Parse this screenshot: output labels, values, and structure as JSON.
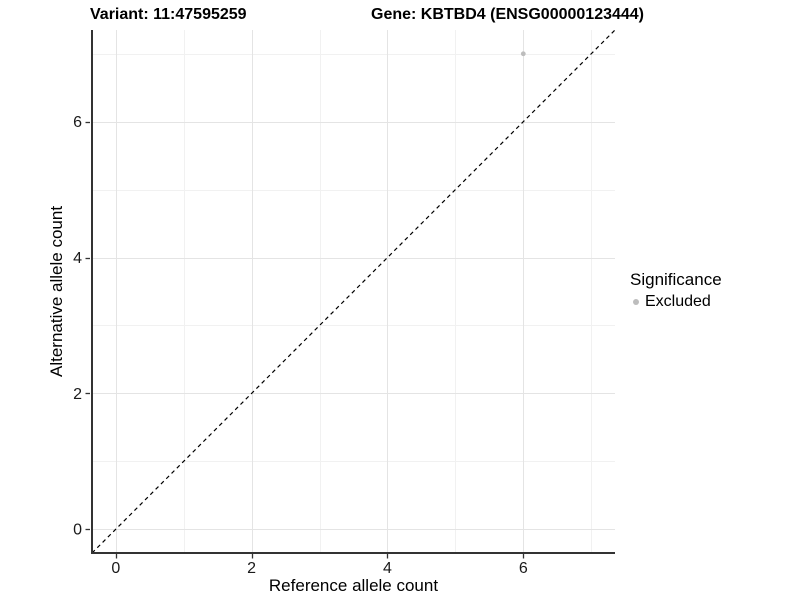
{
  "chart_data": {
    "type": "scatter",
    "title_left": "Variant: 11:47595259",
    "title_right": "Gene: KBTBD4 (ENSG00000123444)",
    "xlabel": "Reference allele count",
    "ylabel": "Alternative allele count",
    "xlim": [
      -0.35,
      7.35
    ],
    "ylim": [
      -0.35,
      7.35
    ],
    "xticks": [
      0,
      2,
      4,
      6
    ],
    "yticks": [
      0,
      2,
      4,
      6
    ],
    "xticks_minor": [
      1,
      3,
      5,
      7
    ],
    "yticks_minor": [
      1,
      3,
      5,
      7
    ],
    "grid": true,
    "points": [
      {
        "x": 6,
        "y": 7,
        "series": "Excluded"
      }
    ],
    "reference_line": {
      "type": "diagonal",
      "style": "dashed",
      "from": [
        -0.35,
        -0.35
      ],
      "to": [
        7.35,
        7.35
      ]
    },
    "legend": {
      "title": "Significance",
      "position": "right",
      "entries": [
        {
          "label": "Excluded",
          "color": "#bdbdbd",
          "marker": "circle"
        }
      ]
    },
    "colors": {
      "point": "#bdbdbd",
      "grid_major": "#e4e4e4",
      "grid_minor": "#f1f1f1",
      "axis_line": "#333333",
      "reference_line": "#000000",
      "tick_label": "#1a1a1a"
    }
  }
}
